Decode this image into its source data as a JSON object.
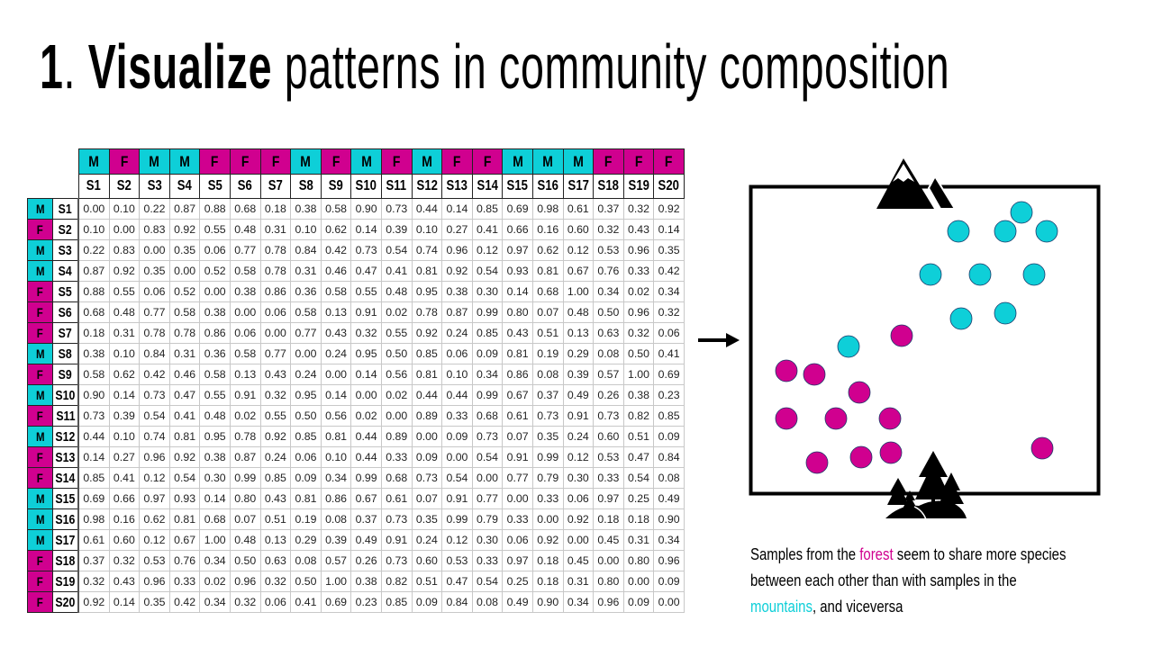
{
  "title": {
    "number": "1",
    "dot": ".",
    "bold": "Visualize",
    "rest": "patterns in community composition"
  },
  "colors": {
    "M": "#0ecfd8",
    "F": "#d0008f"
  },
  "matrix": {
    "samples": [
      "S1",
      "S2",
      "S3",
      "S4",
      "S5",
      "S6",
      "S7",
      "S8",
      "S9",
      "S10",
      "S11",
      "S12",
      "S13",
      "S14",
      "S15",
      "S16",
      "S17",
      "S18",
      "S19",
      "S20"
    ],
    "groups": [
      "M",
      "F",
      "M",
      "M",
      "F",
      "F",
      "F",
      "M",
      "F",
      "M",
      "F",
      "M",
      "F",
      "F",
      "M",
      "M",
      "M",
      "F",
      "F",
      "F"
    ],
    "values": [
      [
        "0.00",
        "0.10",
        "0.22",
        "0.87",
        "0.88",
        "0.68",
        "0.18",
        "0.38",
        "0.58",
        "0.90",
        "0.73",
        "0.44",
        "0.14",
        "0.85",
        "0.69",
        "0.98",
        "0.61",
        "0.37",
        "0.32",
        "0.92"
      ],
      [
        "0.10",
        "0.00",
        "0.83",
        "0.92",
        "0.55",
        "0.48",
        "0.31",
        "0.10",
        "0.62",
        "0.14",
        "0.39",
        "0.10",
        "0.27",
        "0.41",
        "0.66",
        "0.16",
        "0.60",
        "0.32",
        "0.43",
        "0.14"
      ],
      [
        "0.22",
        "0.83",
        "0.00",
        "0.35",
        "0.06",
        "0.77",
        "0.78",
        "0.84",
        "0.42",
        "0.73",
        "0.54",
        "0.74",
        "0.96",
        "0.12",
        "0.97",
        "0.62",
        "0.12",
        "0.53",
        "0.96",
        "0.35"
      ],
      [
        "0.87",
        "0.92",
        "0.35",
        "0.00",
        "0.52",
        "0.58",
        "0.78",
        "0.31",
        "0.46",
        "0.47",
        "0.41",
        "0.81",
        "0.92",
        "0.54",
        "0.93",
        "0.81",
        "0.67",
        "0.76",
        "0.33",
        "0.42"
      ],
      [
        "0.88",
        "0.55",
        "0.06",
        "0.52",
        "0.00",
        "0.38",
        "0.86",
        "0.36",
        "0.58",
        "0.55",
        "0.48",
        "0.95",
        "0.38",
        "0.30",
        "0.14",
        "0.68",
        "1.00",
        "0.34",
        "0.02",
        "0.34"
      ],
      [
        "0.68",
        "0.48",
        "0.77",
        "0.58",
        "0.38",
        "0.00",
        "0.06",
        "0.58",
        "0.13",
        "0.91",
        "0.02",
        "0.78",
        "0.87",
        "0.99",
        "0.80",
        "0.07",
        "0.48",
        "0.50",
        "0.96",
        "0.32"
      ],
      [
        "0.18",
        "0.31",
        "0.78",
        "0.78",
        "0.86",
        "0.06",
        "0.00",
        "0.77",
        "0.43",
        "0.32",
        "0.55",
        "0.92",
        "0.24",
        "0.85",
        "0.43",
        "0.51",
        "0.13",
        "0.63",
        "0.32",
        "0.06"
      ],
      [
        "0.38",
        "0.10",
        "0.84",
        "0.31",
        "0.36",
        "0.58",
        "0.77",
        "0.00",
        "0.24",
        "0.95",
        "0.50",
        "0.85",
        "0.06",
        "0.09",
        "0.81",
        "0.19",
        "0.29",
        "0.08",
        "0.50",
        "0.41"
      ],
      [
        "0.58",
        "0.62",
        "0.42",
        "0.46",
        "0.58",
        "0.13",
        "0.43",
        "0.24",
        "0.00",
        "0.14",
        "0.56",
        "0.81",
        "0.10",
        "0.34",
        "0.86",
        "0.08",
        "0.39",
        "0.57",
        "1.00",
        "0.69"
      ],
      [
        "0.90",
        "0.14",
        "0.73",
        "0.47",
        "0.55",
        "0.91",
        "0.32",
        "0.95",
        "0.14",
        "0.00",
        "0.02",
        "0.44",
        "0.44",
        "0.99",
        "0.67",
        "0.37",
        "0.49",
        "0.26",
        "0.38",
        "0.23"
      ],
      [
        "0.73",
        "0.39",
        "0.54",
        "0.41",
        "0.48",
        "0.02",
        "0.55",
        "0.50",
        "0.56",
        "0.02",
        "0.00",
        "0.89",
        "0.33",
        "0.68",
        "0.61",
        "0.73",
        "0.91",
        "0.73",
        "0.82",
        "0.85"
      ],
      [
        "0.44",
        "0.10",
        "0.74",
        "0.81",
        "0.95",
        "0.78",
        "0.92",
        "0.85",
        "0.81",
        "0.44",
        "0.89",
        "0.00",
        "0.09",
        "0.73",
        "0.07",
        "0.35",
        "0.24",
        "0.60",
        "0.51",
        "0.09"
      ],
      [
        "0.14",
        "0.27",
        "0.96",
        "0.92",
        "0.38",
        "0.87",
        "0.24",
        "0.06",
        "0.10",
        "0.44",
        "0.33",
        "0.09",
        "0.00",
        "0.54",
        "0.91",
        "0.99",
        "0.12",
        "0.53",
        "0.47",
        "0.84"
      ],
      [
        "0.85",
        "0.41",
        "0.12",
        "0.54",
        "0.30",
        "0.99",
        "0.85",
        "0.09",
        "0.34",
        "0.99",
        "0.68",
        "0.73",
        "0.54",
        "0.00",
        "0.77",
        "0.79",
        "0.30",
        "0.33",
        "0.54",
        "0.08"
      ],
      [
        "0.69",
        "0.66",
        "0.97",
        "0.93",
        "0.14",
        "0.80",
        "0.43",
        "0.81",
        "0.86",
        "0.67",
        "0.61",
        "0.07",
        "0.91",
        "0.77",
        "0.00",
        "0.33",
        "0.06",
        "0.97",
        "0.25",
        "0.49"
      ],
      [
        "0.98",
        "0.16",
        "0.62",
        "0.81",
        "0.68",
        "0.07",
        "0.51",
        "0.19",
        "0.08",
        "0.37",
        "0.73",
        "0.35",
        "0.99",
        "0.79",
        "0.33",
        "0.00",
        "0.92",
        "0.18",
        "0.18",
        "0.90"
      ],
      [
        "0.61",
        "0.60",
        "0.12",
        "0.67",
        "1.00",
        "0.48",
        "0.13",
        "0.29",
        "0.39",
        "0.49",
        "0.91",
        "0.24",
        "0.12",
        "0.30",
        "0.06",
        "0.92",
        "0.00",
        "0.45",
        "0.31",
        "0.34"
      ],
      [
        "0.37",
        "0.32",
        "0.53",
        "0.76",
        "0.34",
        "0.50",
        "0.63",
        "0.08",
        "0.57",
        "0.26",
        "0.73",
        "0.60",
        "0.53",
        "0.33",
        "0.97",
        "0.18",
        "0.45",
        "0.00",
        "0.80",
        "0.96"
      ],
      [
        "0.32",
        "0.43",
        "0.96",
        "0.33",
        "0.02",
        "0.96",
        "0.32",
        "0.50",
        "1.00",
        "0.38",
        "0.82",
        "0.51",
        "0.47",
        "0.54",
        "0.25",
        "0.18",
        "0.31",
        "0.80",
        "0.00",
        "0.09"
      ],
      [
        "0.92",
        "0.14",
        "0.35",
        "0.42",
        "0.34",
        "0.32",
        "0.06",
        "0.41",
        "0.69",
        "0.23",
        "0.85",
        "0.09",
        "0.84",
        "0.08",
        "0.49",
        "0.90",
        "0.34",
        "0.96",
        "0.09",
        "0.00"
      ]
    ]
  },
  "caption": {
    "part1": "Samples from the",
    "forest": "forest",
    "part2": "seem to share more species",
    "line2": "between each other than with samples in the",
    "mountains": "mountains",
    "part3": ", and viceversa"
  }
}
